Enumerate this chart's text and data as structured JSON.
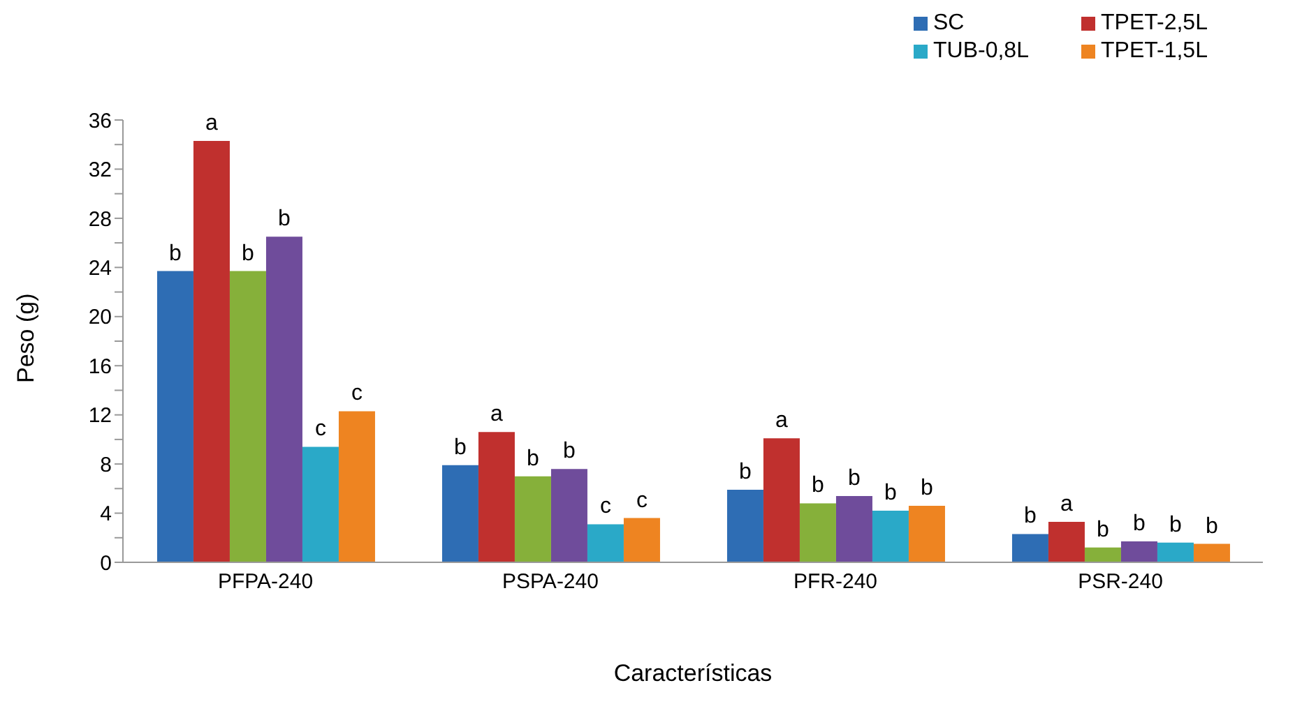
{
  "chart_data": {
    "type": "bar",
    "xlabel": "Características",
    "ylabel": "Peso (g)",
    "categories": [
      "PFPA-240",
      "PSPA-240",
      "PFR-240",
      "PSR-240"
    ],
    "series": [
      {
        "name": "SC",
        "color": "#2e6db4",
        "values": [
          23.7,
          7.9,
          5.9,
          2.3
        ],
        "value_labels": [
          "b",
          "b",
          "b",
          "b"
        ]
      },
      {
        "name": "TPET-2,5L",
        "color": "#c0302e",
        "values": [
          34.3,
          10.6,
          10.1,
          3.3
        ],
        "value_labels": [
          "a",
          "a",
          "a",
          "a"
        ]
      },
      {
        "color": "#86b03a",
        "values": [
          23.7,
          7.0,
          4.8,
          1.2
        ],
        "value_labels": [
          "b",
          "b",
          "b",
          "b"
        ]
      },
      {
        "color": "#6f4c9b",
        "values": [
          26.5,
          7.6,
          5.4,
          1.7
        ],
        "value_labels": [
          "b",
          "b",
          "b",
          "b"
        ]
      },
      {
        "name": "TUB-0,8L",
        "color": "#2aa9c8",
        "values": [
          9.4,
          3.1,
          4.2,
          1.6
        ],
        "value_labels": [
          "c",
          "c",
          "b",
          "b"
        ]
      },
      {
        "name": "TPET-1,5L",
        "color": "#ee8421",
        "values": [
          12.3,
          3.6,
          4.6,
          1.5
        ],
        "value_labels": [
          "c",
          "c",
          "b",
          "b"
        ]
      }
    ],
    "ylim": [
      0,
      36
    ],
    "yticks": [
      0,
      {
        "value": 2,
        "label": null
      },
      4,
      {
        "value": 6,
        "label": null
      },
      8,
      {
        "value": 10,
        "label": null
      },
      12,
      {
        "value": 14,
        "label": null
      },
      16,
      {
        "value": 18,
        "label": null
      },
      20,
      {
        "value": 22,
        "label": null
      },
      24,
      {
        "value": 26,
        "label": null
      },
      28,
      {
        "value": 30,
        "label": null
      },
      32,
      {
        "value": 34,
        "label": null
      },
      36
    ],
    "grid": false,
    "legend": "top right"
  }
}
